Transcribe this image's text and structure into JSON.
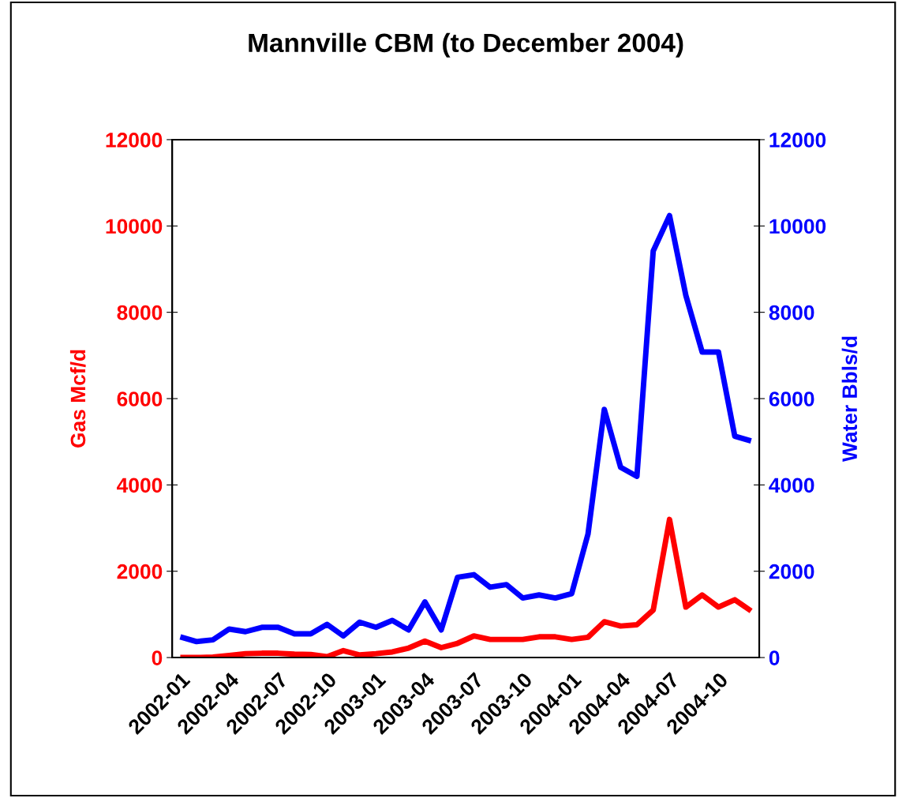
{
  "chart_data": {
    "type": "line",
    "title": "Mannville CBM (to December 2004)",
    "ylabel": "Gas Mcf/d",
    "y2label": "Water Bbls/d",
    "categories": [
      "2002-01",
      null,
      null,
      "2002-04",
      null,
      null,
      "2002-07",
      null,
      null,
      "2002-10",
      null,
      null,
      "2003-01",
      null,
      null,
      "2003-04",
      null,
      null,
      "2003-07",
      null,
      null,
      "2003-10",
      null,
      null,
      "2004-01",
      null,
      null,
      "2004-04",
      null,
      null,
      "2004-07",
      null,
      null,
      "2004-10",
      null,
      null
    ],
    "series": [
      {
        "color": "#ff0000",
        "values": [
          0,
          0,
          10,
          50,
          90,
          100,
          100,
          80,
          70,
          20,
          160,
          60,
          90,
          130,
          220,
          380,
          230,
          330,
          500,
          420,
          420,
          420,
          480,
          480,
          420,
          470,
          830,
          730,
          760,
          1100,
          3200,
          1170,
          1450,
          1170,
          1340,
          1080
        ]
      },
      {
        "color": "#0000ff",
        "axis": "y2",
        "values": [
          480,
          370,
          410,
          660,
          600,
          700,
          700,
          550,
          550,
          770,
          500,
          820,
          700,
          860,
          640,
          1290,
          640,
          1860,
          1920,
          1630,
          1690,
          1380,
          1450,
          1380,
          1480,
          2860,
          5750,
          4410,
          4200,
          9420,
          10240,
          8390,
          7080,
          7080,
          5130,
          5020
        ]
      }
    ],
    "ylim": [
      0,
      12000
    ],
    "yticks": [
      0,
      2000,
      4000,
      6000,
      8000,
      10000,
      12000
    ],
    "y2lim": [
      0,
      12000
    ],
    "y2ticks": [
      0,
      2000,
      4000,
      6000,
      8000,
      10000,
      12000
    ],
    "grid": false,
    "marker": "none",
    "line_style": "solid"
  }
}
